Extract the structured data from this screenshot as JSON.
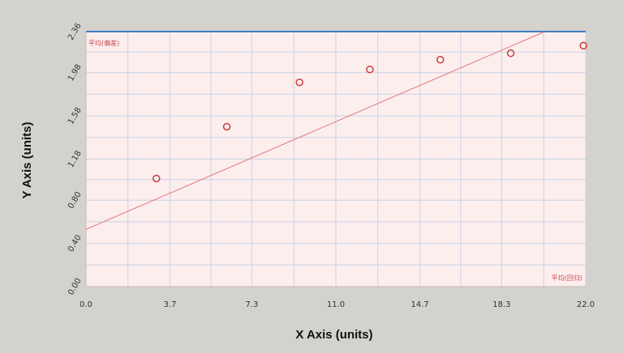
{
  "chart_data": {
    "type": "scatter",
    "xlabel": "X Axis (units)",
    "ylabel": "Y Axis (units)",
    "xlim": [
      0,
      22
    ],
    "ylim": [
      0,
      2.36
    ],
    "x_ticks": [
      0,
      3.7,
      7.3,
      11,
      14.7,
      18.3,
      22
    ],
    "x_tick_labels": [
      "0.0",
      "3.7",
      "7.3",
      "11.0",
      "14.7",
      "18.3",
      "22.0"
    ],
    "y_ticks": [
      0,
      0.4,
      0.8,
      1.18,
      1.58,
      1.98,
      2.36
    ],
    "y_tick_labels": [
      "0.00",
      "0.40",
      "0.80",
      "1.18",
      "1.58",
      "1.98",
      "2.36"
    ],
    "grid": true,
    "series": [
      {
        "x": [
          3.1,
          6.2,
          9.4,
          12.5,
          15.6,
          18.7,
          21.9
        ],
        "y": [
          1.0,
          1.48,
          1.89,
          2.01,
          2.1,
          2.16,
          2.23
        ]
      }
    ],
    "trendline": {
      "x": [
        0,
        20.2
      ],
      "y": [
        0.53,
        2.36
      ]
    },
    "annotations": [
      "平均(偏差)",
      "平均(回归)"
    ],
    "colors": {
      "plot_background": "#fdeeee",
      "grid": "#c6d2e4",
      "markers": "#cc3b3b",
      "trendline": "#e07878",
      "top_border": "#3d7fc7"
    }
  }
}
